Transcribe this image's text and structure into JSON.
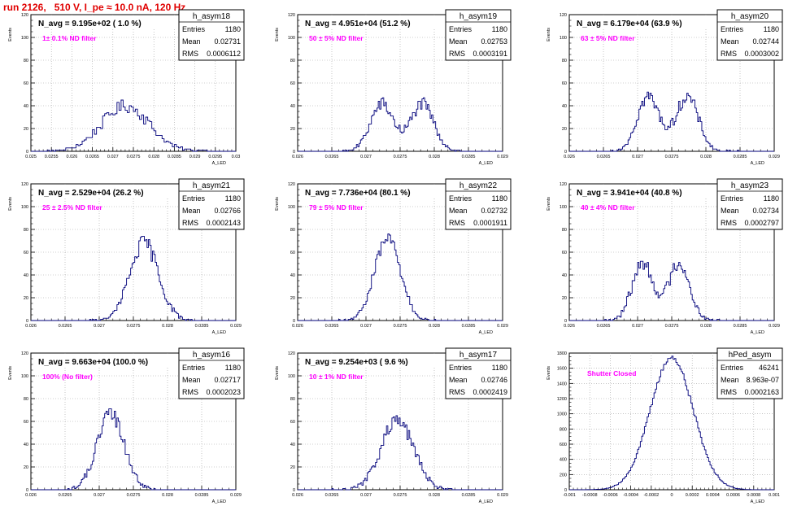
{
  "page": {
    "title": "run 2126,   510 V, I_pe ≈ 10.0 nA, 120 Hz",
    "colors": {
      "histogram": "#00007a",
      "annotation": "#ff00ff",
      "grid": "#a0a0a0"
    }
  },
  "chart_data": [
    {
      "type": "bar",
      "name": "h_asym18",
      "title": "N_avg = 9.195e+02 ( 1.0 %)",
      "annotation": "1± 0.1% ND filter",
      "stats": {
        "entries": "1180",
        "mean": "0.02731",
        "rms": "0.0006112"
      },
      "ylabel": "Events",
      "xlabel": "A_LED",
      "xlim": [
        0.025,
        0.03
      ],
      "ylim": [
        0,
        120
      ],
      "xticks": [
        "0.025",
        "0.0255",
        "0.026",
        "0.0265",
        "0.027",
        "0.0275",
        "0.028",
        "0.0285",
        "0.029",
        "0.0295",
        "0.03"
      ],
      "yticks": [
        "0",
        "20",
        "40",
        "60",
        "80",
        "100",
        "120"
      ],
      "mean": 0.02731,
      "sigma": 0.00058,
      "peak": 40,
      "shape": "broad"
    },
    {
      "type": "bar",
      "name": "h_asym19",
      "title": "N_avg = 4.951e+04 (51.2 %)",
      "annotation": "50 ± 5% ND filter",
      "stats": {
        "entries": "1180",
        "mean": "0.02753",
        "rms": "0.0003191"
      },
      "ylabel": "Events",
      "xlabel": "A_LED",
      "xlim": [
        0.026,
        0.029
      ],
      "ylim": [
        0,
        120
      ],
      "xticks": [
        "0.026",
        "0.0265",
        "0.027",
        "0.0275",
        "0.028",
        "0.0285",
        "0.029"
      ],
      "yticks": [
        "0",
        "20",
        "40",
        "60",
        "80",
        "100",
        "120"
      ],
      "mean": 0.02753,
      "sigma": 0.00031,
      "peak": 45,
      "shape": "double"
    },
    {
      "type": "bar",
      "name": "h_asym20",
      "title": "N_avg = 6.179e+04 (63.9 %)",
      "annotation": "63 ± 5% ND filter",
      "stats": {
        "entries": "1180",
        "mean": "0.02744",
        "rms": "0.0003002"
      },
      "ylabel": "Events",
      "xlabel": "A_LED",
      "xlim": [
        0.026,
        0.029
      ],
      "ylim": [
        0,
        120
      ],
      "xticks": [
        "0.026",
        "0.0265",
        "0.027",
        "0.0275",
        "0.028",
        "0.0285",
        "0.029"
      ],
      "yticks": [
        "0",
        "20",
        "40",
        "60",
        "80",
        "100",
        "120"
      ],
      "mean": 0.02744,
      "sigma": 0.0003,
      "peak": 52,
      "shape": "double"
    },
    {
      "type": "bar",
      "name": "h_asym21",
      "title": "N_avg = 2.529e+04 (26.2 %)",
      "annotation": "25 ± 2.5% ND filter",
      "stats": {
        "entries": "1180",
        "mean": "0.02766",
        "rms": "0.0002143"
      },
      "ylabel": "Events",
      "xlabel": "A_LED",
      "xlim": [
        0.026,
        0.029
      ],
      "ylim": [
        0,
        120
      ],
      "xticks": [
        "0.026",
        "0.0265",
        "0.027",
        "0.0275",
        "0.028",
        "0.0285",
        "0.029"
      ],
      "yticks": [
        "0",
        "20",
        "40",
        "60",
        "80",
        "100",
        "120"
      ],
      "mean": 0.02766,
      "sigma": 0.00021,
      "peak": 68,
      "shape": "single"
    },
    {
      "type": "bar",
      "name": "h_asym22",
      "title": "N_avg = 7.736e+04 (80.1 %)",
      "annotation": "79 ± 5% ND filter",
      "stats": {
        "entries": "1180",
        "mean": "0.02732",
        "rms": "0.0001911"
      },
      "ylabel": "Events",
      "xlabel": "A_LED",
      "xlim": [
        0.026,
        0.029
      ],
      "ylim": [
        0,
        120
      ],
      "xticks": [
        "0.026",
        "0.0265",
        "0.027",
        "0.0275",
        "0.028",
        "0.0285",
        "0.029"
      ],
      "yticks": [
        "0",
        "20",
        "40",
        "60",
        "80",
        "100",
        "120"
      ],
      "mean": 0.02732,
      "sigma": 0.00019,
      "peak": 72,
      "shape": "single"
    },
    {
      "type": "bar",
      "name": "h_asym23",
      "title": "N_avg = 3.941e+04 (40.8 %)",
      "annotation": "40 ± 4% ND filter",
      "stats": {
        "entries": "1180",
        "mean": "0.02734",
        "rms": "0.0002797"
      },
      "ylabel": "Events",
      "xlabel": "A_LED",
      "xlim": [
        0.026,
        0.029
      ],
      "ylim": [
        0,
        120
      ],
      "xticks": [
        "0.026",
        "0.0265",
        "0.027",
        "0.0275",
        "0.028",
        "0.0285",
        "0.029"
      ],
      "yticks": [
        "0",
        "20",
        "40",
        "60",
        "80",
        "100",
        "120"
      ],
      "mean": 0.02734,
      "sigma": 0.00028,
      "peak": 55,
      "shape": "double"
    },
    {
      "type": "bar",
      "name": "h_asym16",
      "title": "N_avg = 9.663e+04 (100.0 %)",
      "annotation": "100% (No filter)",
      "stats": {
        "entries": "1180",
        "mean": "0.02717",
        "rms": "0.0002023"
      },
      "ylabel": "Events",
      "xlabel": "A_LED",
      "xlim": [
        0.026,
        0.029
      ],
      "ylim": [
        0,
        120
      ],
      "xticks": [
        "0.026",
        "0.0265",
        "0.027",
        "0.0275",
        "0.028",
        "0.0285",
        "0.029"
      ],
      "yticks": [
        "0",
        "20",
        "40",
        "60",
        "80",
        "100",
        "120"
      ],
      "mean": 0.02717,
      "sigma": 0.0002,
      "peak": 66,
      "shape": "single"
    },
    {
      "type": "bar",
      "name": "h_asym17",
      "title": "N_avg = 9.254e+03 ( 9.6 %)",
      "annotation": "10 ± 1% ND filter",
      "stats": {
        "entries": "1180",
        "mean": "0.02746",
        "rms": "0.0002419"
      },
      "ylabel": "Events",
      "xlabel": "A_LED",
      "xlim": [
        0.026,
        0.029
      ],
      "ylim": [
        0,
        120
      ],
      "xticks": [
        "0.026",
        "0.0265",
        "0.027",
        "0.0275",
        "0.028",
        "0.0285",
        "0.029"
      ],
      "yticks": [
        "0",
        "20",
        "40",
        "60",
        "80",
        "100",
        "120"
      ],
      "mean": 0.02746,
      "sigma": 0.00024,
      "peak": 60,
      "shape": "single"
    },
    {
      "type": "bar",
      "name": "hPed_asym",
      "title": "",
      "annotation": "Shutter Closed",
      "stats": {
        "entries": "46241",
        "mean": "8.963e-07",
        "rms": "0.0002163"
      },
      "ylabel": "Events",
      "xlabel": "A_LED",
      "xlim": [
        -0.001,
        0.001
      ],
      "ylim": [
        0,
        1800
      ],
      "xticks": [
        "-0.001",
        "-0.0008",
        "-0.0006",
        "-0.0004",
        "-0.0002",
        "0",
        "0.0002",
        "0.0004",
        "0.0006",
        "0.0008",
        "0.001"
      ],
      "yticks": [
        "0",
        "200",
        "400",
        "600",
        "800",
        "1000",
        "1200",
        "1400",
        "1600",
        "1800"
      ],
      "mean": 0.0,
      "sigma": 0.00021,
      "peak": 1740,
      "shape": "single"
    }
  ]
}
